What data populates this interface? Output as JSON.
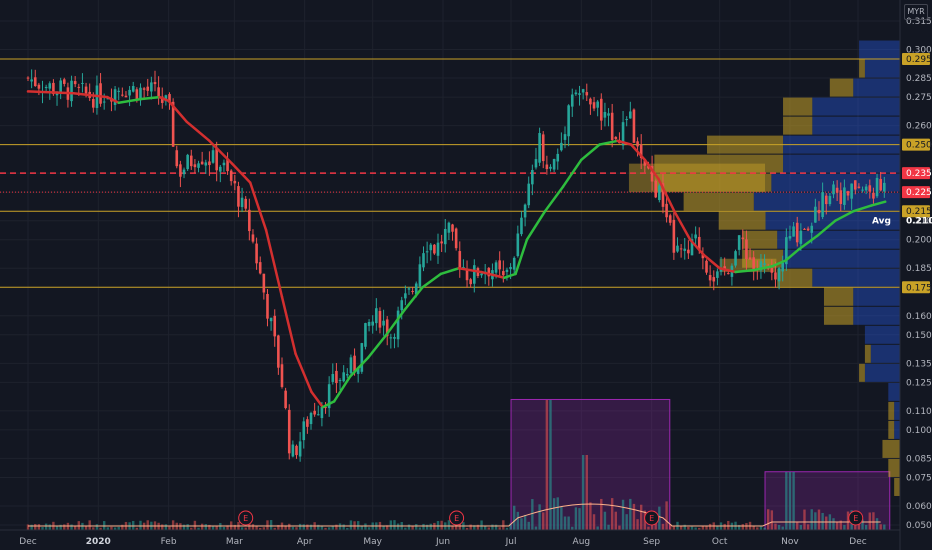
{
  "chart_data": {
    "type": "candlestick",
    "currency": "MYR",
    "y_range": [
      0.05,
      0.315
    ],
    "y_ticks": [
      "0.050",
      "0.060",
      "0.075",
      "0.085",
      "0.100",
      "0.110",
      "0.125",
      "0.135",
      "0.150",
      "0.160",
      "0.175",
      "0.185",
      "0.200",
      "0.210",
      "0.225",
      "0.235",
      "0.250",
      "0.260",
      "0.275",
      "0.285",
      "0.300",
      "0.315"
    ],
    "x_labels": [
      {
        "label": "Dec",
        "bold": false,
        "day": 0
      },
      {
        "label": "2020",
        "bold": true,
        "day": 31
      },
      {
        "label": "Feb",
        "bold": false,
        "day": 62
      },
      {
        "label": "Mar",
        "bold": false,
        "day": 91
      },
      {
        "label": "Apr",
        "bold": false,
        "day": 122
      },
      {
        "label": "May",
        "bold": false,
        "day": 152
      },
      {
        "label": "Jun",
        "bold": false,
        "day": 183
      },
      {
        "label": "Jul",
        "bold": false,
        "day": 213
      },
      {
        "label": "Aug",
        "bold": false,
        "day": 244
      },
      {
        "label": "Sep",
        "bold": false,
        "day": 275
      },
      {
        "label": "Oct",
        "bold": false,
        "day": 305
      },
      {
        "label": "Nov",
        "bold": false,
        "day": 336
      },
      {
        "label": "Dec",
        "bold": false,
        "day": 366
      }
    ],
    "horizontal_levels": [
      {
        "value": 0.295,
        "label": "0.295",
        "style": "solid",
        "color": "#c9a227"
      },
      {
        "value": 0.25,
        "label": "0.250",
        "style": "solid",
        "color": "#c9a227"
      },
      {
        "value": 0.235,
        "label": "0.235",
        "style": "dashed",
        "color": "#f23645"
      },
      {
        "value": 0.225,
        "label": "0.225",
        "style": "dotted",
        "color": "#f23645"
      },
      {
        "value": 0.215,
        "label": "0.215",
        "style": "solid",
        "color": "#c9a227"
      },
      {
        "value": 0.21,
        "label": "Avg",
        "price": "0.210",
        "style": "none",
        "color": "#ffffff"
      },
      {
        "value": 0.175,
        "label": "0.175",
        "style": "solid",
        "color": "#c9a227"
      }
    ],
    "price_path": [
      [
        0,
        0.285
      ],
      [
        10,
        0.28
      ],
      [
        20,
        0.278
      ],
      [
        30,
        0.275
      ],
      [
        40,
        0.28
      ],
      [
        55,
        0.278
      ],
      [
        62,
        0.27
      ],
      [
        66,
        0.235
      ],
      [
        75,
        0.245
      ],
      [
        85,
        0.24
      ],
      [
        92,
        0.225
      ],
      [
        98,
        0.205
      ],
      [
        103,
        0.178
      ],
      [
        108,
        0.15
      ],
      [
        112,
        0.125
      ],
      [
        116,
        0.085
      ],
      [
        120,
        0.095
      ],
      [
        125,
        0.11
      ],
      [
        130,
        0.115
      ],
      [
        135,
        0.125
      ],
      [
        140,
        0.13
      ],
      [
        145,
        0.135
      ],
      [
        150,
        0.155
      ],
      [
        155,
        0.16
      ],
      [
        160,
        0.15
      ],
      [
        165,
        0.165
      ],
      [
        170,
        0.175
      ],
      [
        175,
        0.2
      ],
      [
        180,
        0.195
      ],
      [
        185,
        0.205
      ],
      [
        190,
        0.19
      ],
      [
        195,
        0.18
      ],
      [
        200,
        0.185
      ],
      [
        205,
        0.185
      ],
      [
        210,
        0.178
      ],
      [
        215,
        0.195
      ],
      [
        220,
        0.22
      ],
      [
        225,
        0.255
      ],
      [
        230,
        0.235
      ],
      [
        235,
        0.25
      ],
      [
        240,
        0.28
      ],
      [
        245,
        0.275
      ],
      [
        250,
        0.27
      ],
      [
        255,
        0.262
      ],
      [
        260,
        0.255
      ],
      [
        265,
        0.265
      ],
      [
        270,
        0.24
      ],
      [
        275,
        0.23
      ],
      [
        280,
        0.22
      ],
      [
        285,
        0.195
      ],
      [
        290,
        0.19
      ],
      [
        295,
        0.2
      ],
      [
        300,
        0.185
      ],
      [
        305,
        0.178
      ],
      [
        310,
        0.19
      ],
      [
        315,
        0.2
      ],
      [
        320,
        0.185
      ],
      [
        325,
        0.185
      ],
      [
        330,
        0.178
      ],
      [
        335,
        0.2
      ],
      [
        340,
        0.205
      ],
      [
        345,
        0.21
      ],
      [
        350,
        0.22
      ],
      [
        355,
        0.23
      ],
      [
        360,
        0.222
      ],
      [
        365,
        0.228
      ],
      [
        370,
        0.225
      ],
      [
        378,
        0.228
      ]
    ],
    "ma_path": [
      [
        0,
        0.278
      ],
      [
        20,
        0.277
      ],
      [
        35,
        0.275
      ],
      [
        40,
        0.272
      ],
      [
        50,
        0.274
      ],
      [
        58,
        0.275
      ],
      [
        62,
        0.273
      ],
      [
        70,
        0.262
      ],
      [
        80,
        0.252
      ],
      [
        90,
        0.24
      ],
      [
        98,
        0.23
      ],
      [
        105,
        0.205
      ],
      [
        112,
        0.17
      ],
      [
        118,
        0.14
      ],
      [
        125,
        0.12
      ],
      [
        130,
        0.112
      ],
      [
        135,
        0.115
      ],
      [
        142,
        0.128
      ],
      [
        150,
        0.138
      ],
      [
        158,
        0.15
      ],
      [
        166,
        0.163
      ],
      [
        174,
        0.175
      ],
      [
        182,
        0.182
      ],
      [
        190,
        0.185
      ],
      [
        200,
        0.183
      ],
      [
        210,
        0.18
      ],
      [
        215,
        0.182
      ],
      [
        220,
        0.2
      ],
      [
        228,
        0.215
      ],
      [
        236,
        0.228
      ],
      [
        244,
        0.242
      ],
      [
        252,
        0.25
      ],
      [
        260,
        0.252
      ],
      [
        266,
        0.25
      ],
      [
        272,
        0.242
      ],
      [
        278,
        0.232
      ],
      [
        285,
        0.215
      ],
      [
        292,
        0.2
      ],
      [
        298,
        0.192
      ],
      [
        305,
        0.185
      ],
      [
        312,
        0.183
      ],
      [
        320,
        0.184
      ],
      [
        328,
        0.186
      ],
      [
        334,
        0.189
      ],
      [
        340,
        0.195
      ],
      [
        348,
        0.202
      ],
      [
        356,
        0.21
      ],
      [
        364,
        0.215
      ],
      [
        372,
        0.218
      ],
      [
        378,
        0.22
      ]
    ],
    "volume_profile": [
      {
        "price": 0.3,
        "up": 0.07,
        "down": 0.0
      },
      {
        "price": 0.29,
        "up": 0.06,
        "down": 0.01
      },
      {
        "price": 0.28,
        "up": 0.08,
        "down": 0.04
      },
      {
        "price": 0.27,
        "up": 0.15,
        "down": 0.05
      },
      {
        "price": 0.26,
        "up": 0.15,
        "down": 0.05
      },
      {
        "price": 0.25,
        "up": 0.2,
        "down": 0.13
      },
      {
        "price": 0.24,
        "up": 0.2,
        "down": 0.22
      },
      {
        "price": 0.23,
        "up": 0.22,
        "down": 0.2
      },
      {
        "price": 0.22,
        "up": 0.25,
        "down": 0.12
      },
      {
        "price": 0.21,
        "up": 0.23,
        "down": 0.08
      },
      {
        "price": 0.2,
        "up": 0.21,
        "down": 0.06
      },
      {
        "price": 0.19,
        "up": 0.2,
        "down": 0.07
      },
      {
        "price": 0.18,
        "up": 0.15,
        "down": 0.06
      },
      {
        "price": 0.17,
        "up": 0.08,
        "down": 0.05
      },
      {
        "price": 0.16,
        "up": 0.08,
        "down": 0.05
      },
      {
        "price": 0.15,
        "up": 0.06,
        "down": 0.0
      },
      {
        "price": 0.14,
        "up": 0.05,
        "down": 0.01
      },
      {
        "price": 0.13,
        "up": 0.06,
        "down": 0.01
      },
      {
        "price": 0.12,
        "up": 0.02,
        "down": 0.0
      },
      {
        "price": 0.11,
        "up": 0.01,
        "down": 0.01
      },
      {
        "price": 0.1,
        "up": 0.01,
        "down": 0.01
      },
      {
        "price": 0.09,
        "up": 0.0,
        "down": 0.03
      },
      {
        "price": 0.08,
        "up": 0.0,
        "down": 0.02
      },
      {
        "price": 0.07,
        "up": 0.0,
        "down": 0.01
      }
    ],
    "volume_zones": [
      {
        "day_start": 213,
        "day_end": 283,
        "value_top": 0.116
      },
      {
        "day_start": 325,
        "day_end": 380,
        "value_top": 0.078
      }
    ],
    "earnings_markers": [
      {
        "day": 96,
        "label": "E"
      },
      {
        "day": 189,
        "label": "E"
      },
      {
        "day": 275,
        "label": "E"
      },
      {
        "day": 365,
        "label": "E"
      }
    ],
    "overlay_boxes": [
      {
        "day_start": 265,
        "day_end": 325,
        "value_low": 0.225,
        "value_high": 0.24
      },
      {
        "day_start": 305,
        "day_end": 330,
        "value_low": 0.183,
        "value_high": 0.19
      }
    ]
  }
}
